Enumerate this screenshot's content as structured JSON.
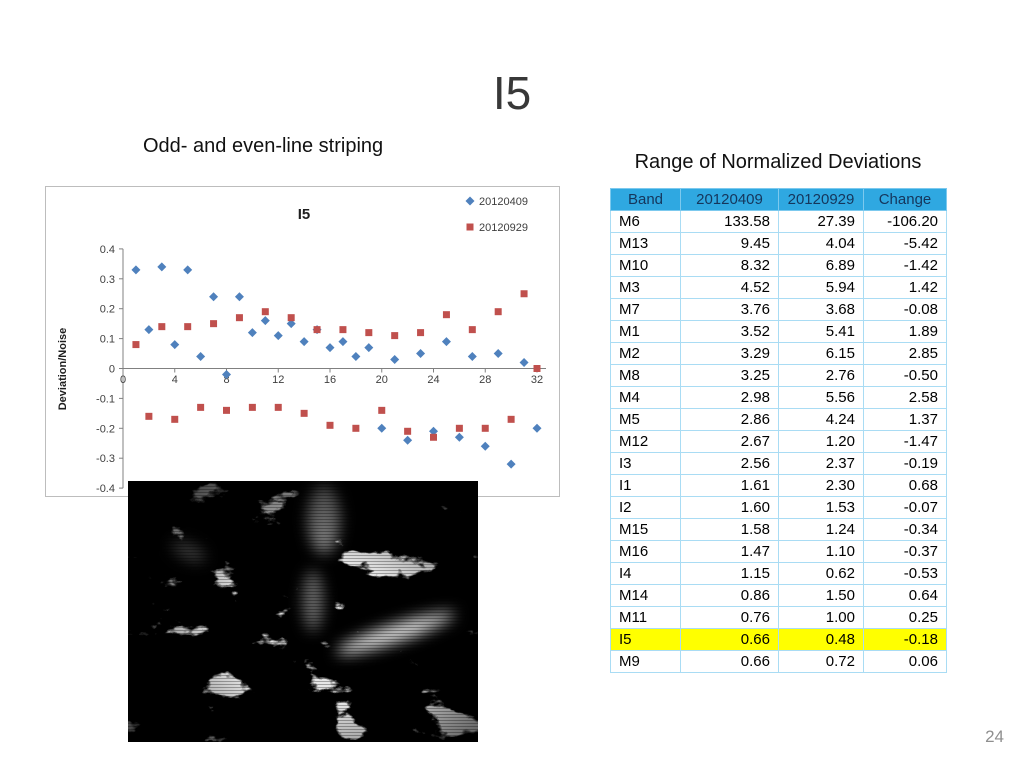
{
  "slide": {
    "title": "I5",
    "left_caption": "Odd- and even-line striping",
    "right_caption": "Range of Normalized Deviations",
    "page_number": "24"
  },
  "chart_data": {
    "type": "scatter",
    "title": "I5",
    "xlabel": "",
    "ylabel": "Deviation/Noise",
    "xlim": [
      0,
      32
    ],
    "ylim": [
      -0.4,
      0.4
    ],
    "grid": false,
    "legend_position": "top-right",
    "x_ticks": [
      0,
      4,
      8,
      12,
      16,
      20,
      24,
      28,
      32
    ],
    "y_ticks": [
      "0.4",
      "0.3",
      "0.2",
      "0.1",
      "0",
      "-0.1",
      "-0.2",
      "-0.3",
      "-0.4"
    ],
    "x_start": 1,
    "x_step": 1,
    "series": [
      {
        "name": "20120409",
        "marker": "diamond",
        "color": "#4F81BD",
        "values": [
          0.33,
          0.13,
          0.34,
          0.08,
          0.33,
          0.04,
          0.24,
          -0.02,
          0.24,
          0.12,
          0.16,
          0.11,
          0.15,
          0.09,
          0.13,
          0.07,
          0.09,
          0.04,
          0.07,
          -0.2,
          0.03,
          -0.24,
          0.05,
          -0.21,
          0.09,
          -0.23,
          0.04,
          -0.26,
          0.05,
          -0.32,
          0.02,
          -0.2
        ]
      },
      {
        "name": "20120929",
        "marker": "square",
        "color": "#C0504D",
        "values": [
          0.08,
          -0.16,
          0.14,
          -0.17,
          0.14,
          -0.13,
          0.15,
          -0.14,
          0.17,
          -0.13,
          0.19,
          -0.13,
          0.17,
          -0.15,
          0.13,
          -0.19,
          0.13,
          -0.2,
          0.12,
          -0.14,
          0.11,
          -0.21,
          0.12,
          -0.23,
          0.18,
          -0.2,
          0.13,
          -0.2,
          0.19,
          -0.17,
          0.25,
          0.0
        ]
      }
    ]
  },
  "table": {
    "columns": [
      "Band",
      "20120409",
      "20120929",
      "Change"
    ],
    "header_bg": "#2FA8E1",
    "header_text_color": "#15365c",
    "highlight_band": "I5",
    "highlight_bg": "#FFFF00",
    "rows": [
      [
        "M6",
        "133.58",
        "27.39",
        "-106.20"
      ],
      [
        "M13",
        "9.45",
        "4.04",
        "-5.42"
      ],
      [
        "M10",
        "8.32",
        "6.89",
        "-1.42"
      ],
      [
        "M3",
        "4.52",
        "5.94",
        "1.42"
      ],
      [
        "M7",
        "3.76",
        "3.68",
        "-0.08"
      ],
      [
        "M1",
        "3.52",
        "5.41",
        "1.89"
      ],
      [
        "M2",
        "3.29",
        "6.15",
        "2.85"
      ],
      [
        "M8",
        "3.25",
        "2.76",
        "-0.50"
      ],
      [
        "M4",
        "2.98",
        "5.56",
        "2.58"
      ],
      [
        "M5",
        "2.86",
        "4.24",
        "1.37"
      ],
      [
        "M12",
        "2.67",
        "1.20",
        "-1.47"
      ],
      [
        "I3",
        "2.56",
        "2.37",
        "-0.19"
      ],
      [
        "I1",
        "1.61",
        "2.30",
        "0.68"
      ],
      [
        "I2",
        "1.60",
        "1.53",
        "-0.07"
      ],
      [
        "M15",
        "1.58",
        "1.24",
        "-0.34"
      ],
      [
        "M16",
        "1.47",
        "1.10",
        "-0.37"
      ],
      [
        "I4",
        "1.15",
        "0.62",
        "-0.53"
      ],
      [
        "M14",
        "0.86",
        "1.50",
        "0.64"
      ],
      [
        "M11",
        "0.76",
        "1.00",
        "0.25"
      ],
      [
        "I5",
        "0.66",
        "0.48",
        "-0.18"
      ],
      [
        "M9",
        "0.66",
        "0.72",
        "0.06"
      ]
    ]
  },
  "satellite_image": {
    "label": "grayscale I5 band scene with cloud striping"
  }
}
